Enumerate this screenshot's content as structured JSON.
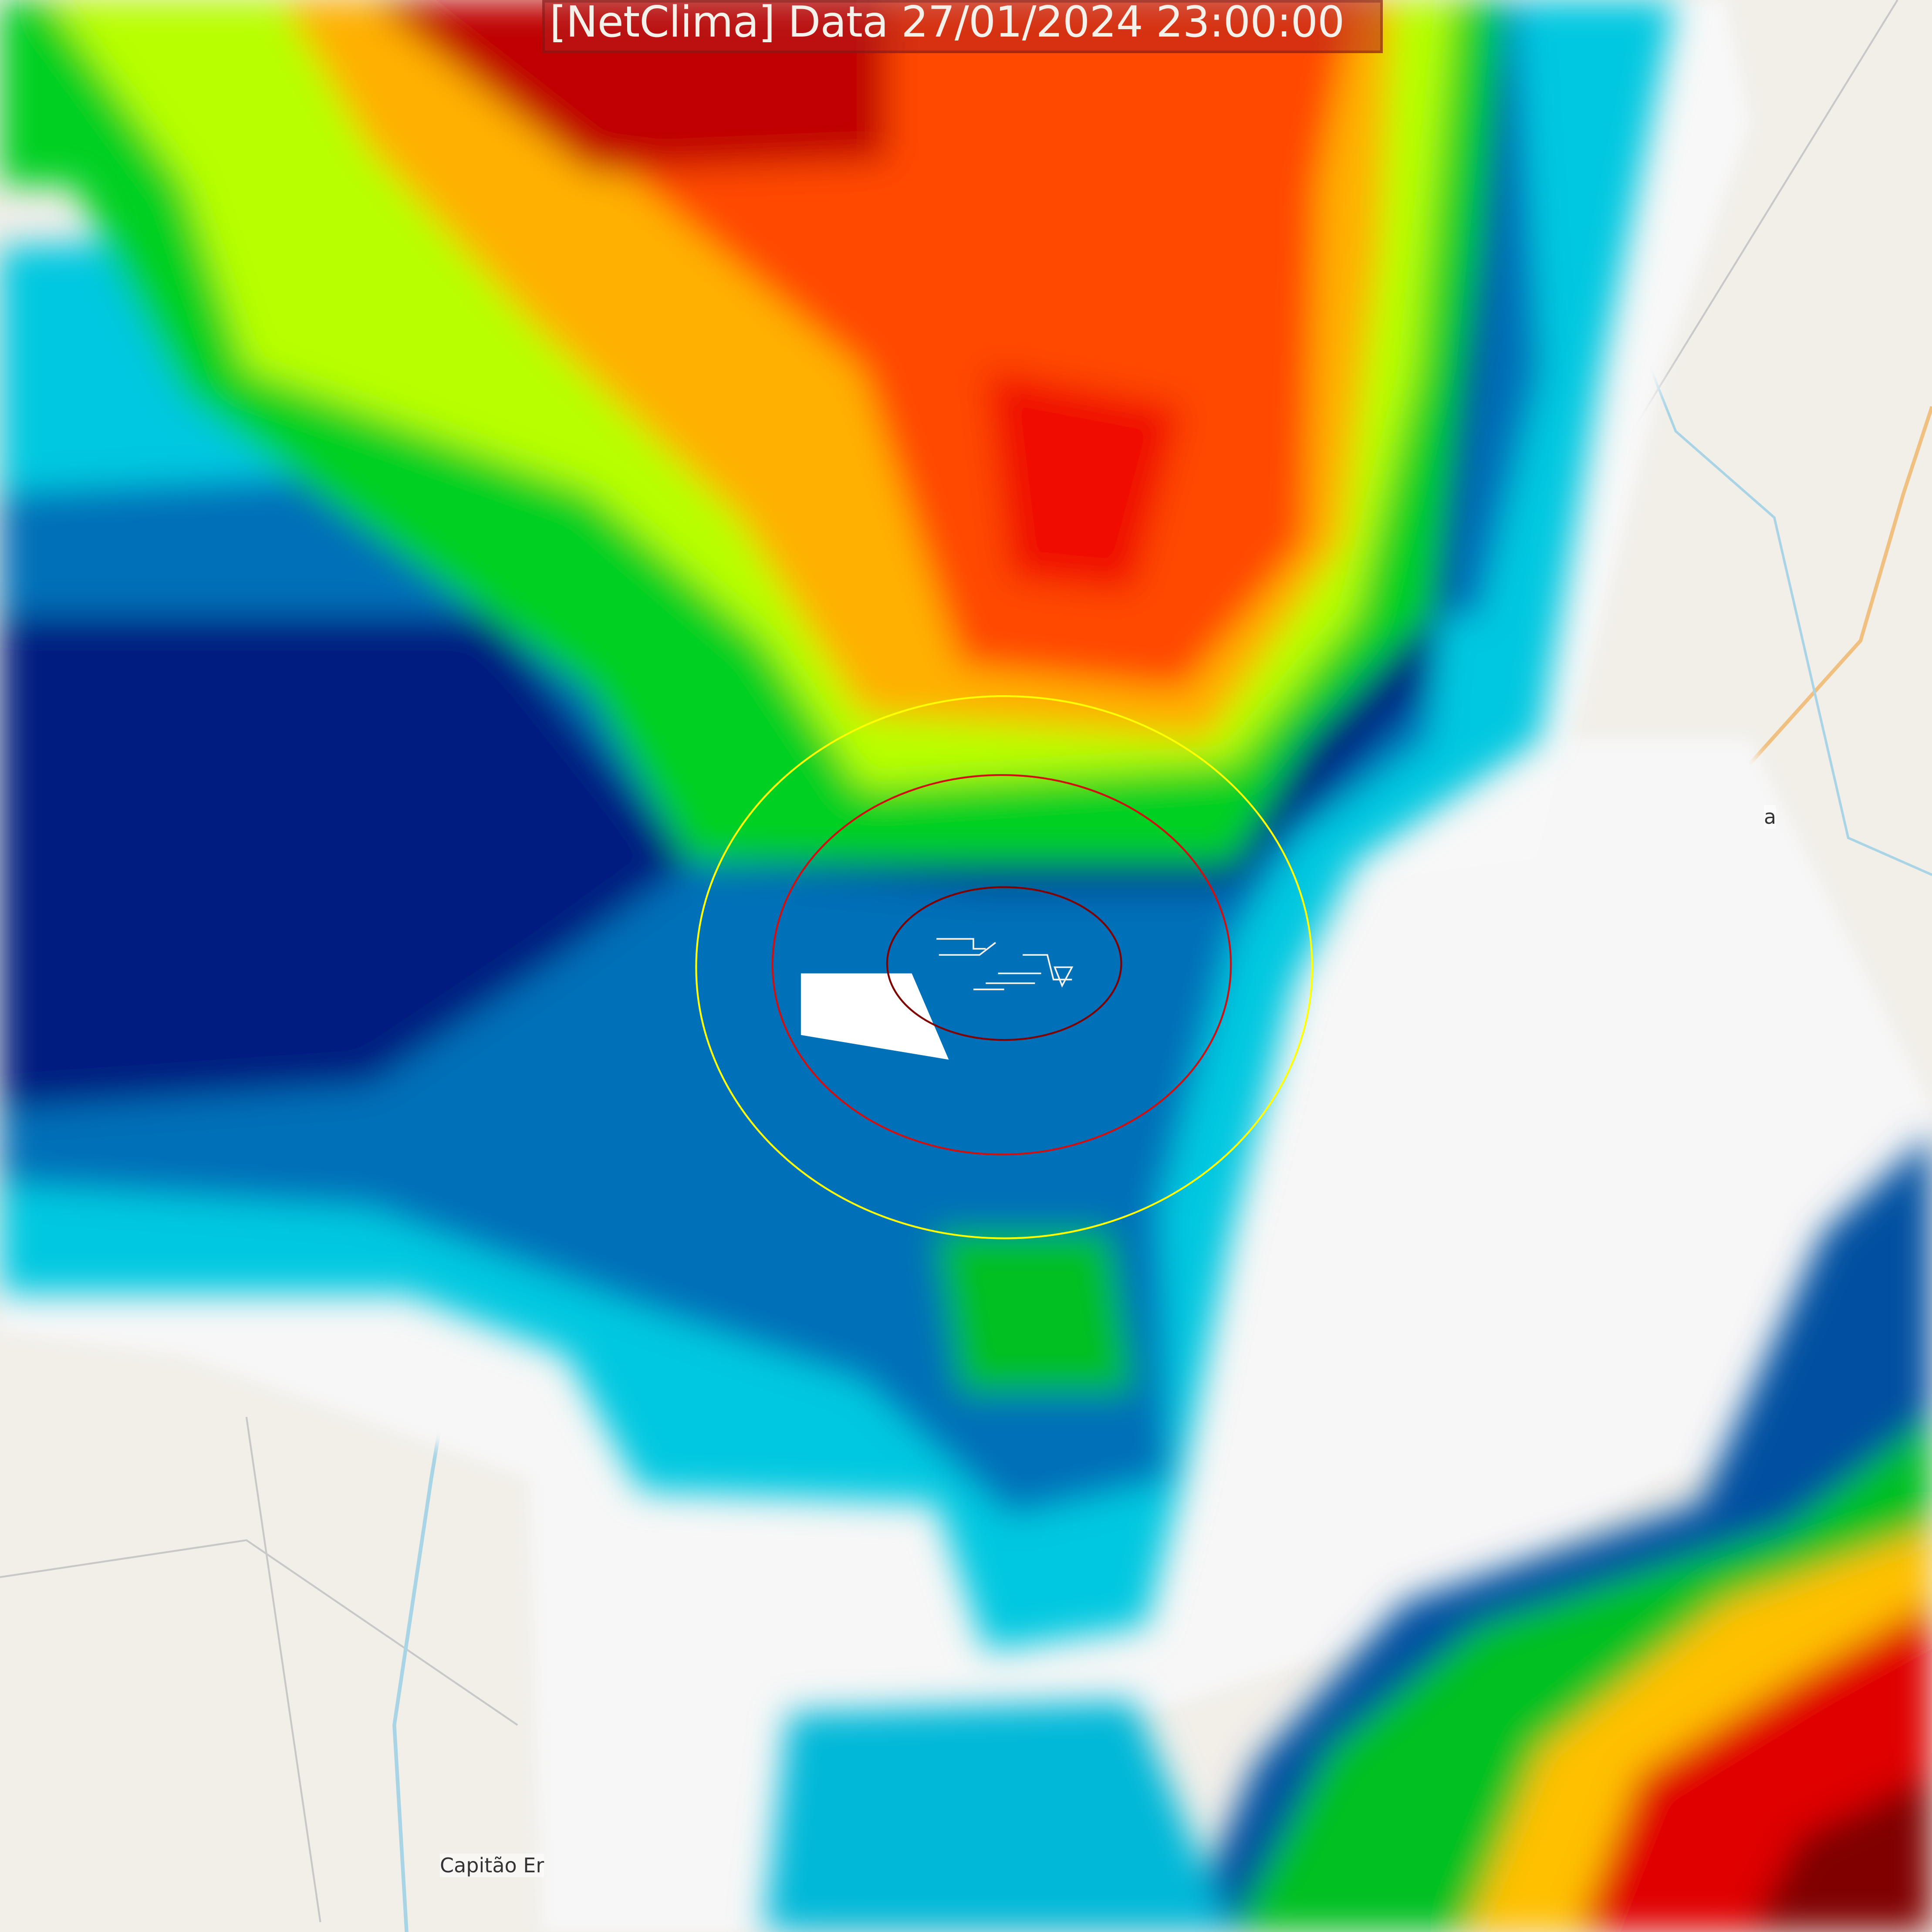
{
  "map": {
    "title": "[NetClima] Data 27/01/2024 23:00:00",
    "place_labels": [
      "Capitão Er",
      "a"
    ],
    "layers": [
      "radar-reflectivity",
      "range-ring-yellow",
      "range-ring-red",
      "range-ring-darkred",
      "basemap"
    ],
    "colors": {
      "basemap": "#f2efe9",
      "river": "#a8d4e6",
      "road": "#f0c080",
      "ring_outer": "#ffff00",
      "ring_middle": "#d01010",
      "ring_inner": "#800000",
      "radar_scale": [
        "#f5f5f5",
        "#00ffff",
        "#00c8e0",
        "#0090c8",
        "#0050a0",
        "#000080",
        "#005050",
        "#00a020",
        "#00ff00",
        "#c0ff00",
        "#ffff00",
        "#ffa000",
        "#ff4000",
        "#e00000",
        "#900000"
      ]
    }
  }
}
